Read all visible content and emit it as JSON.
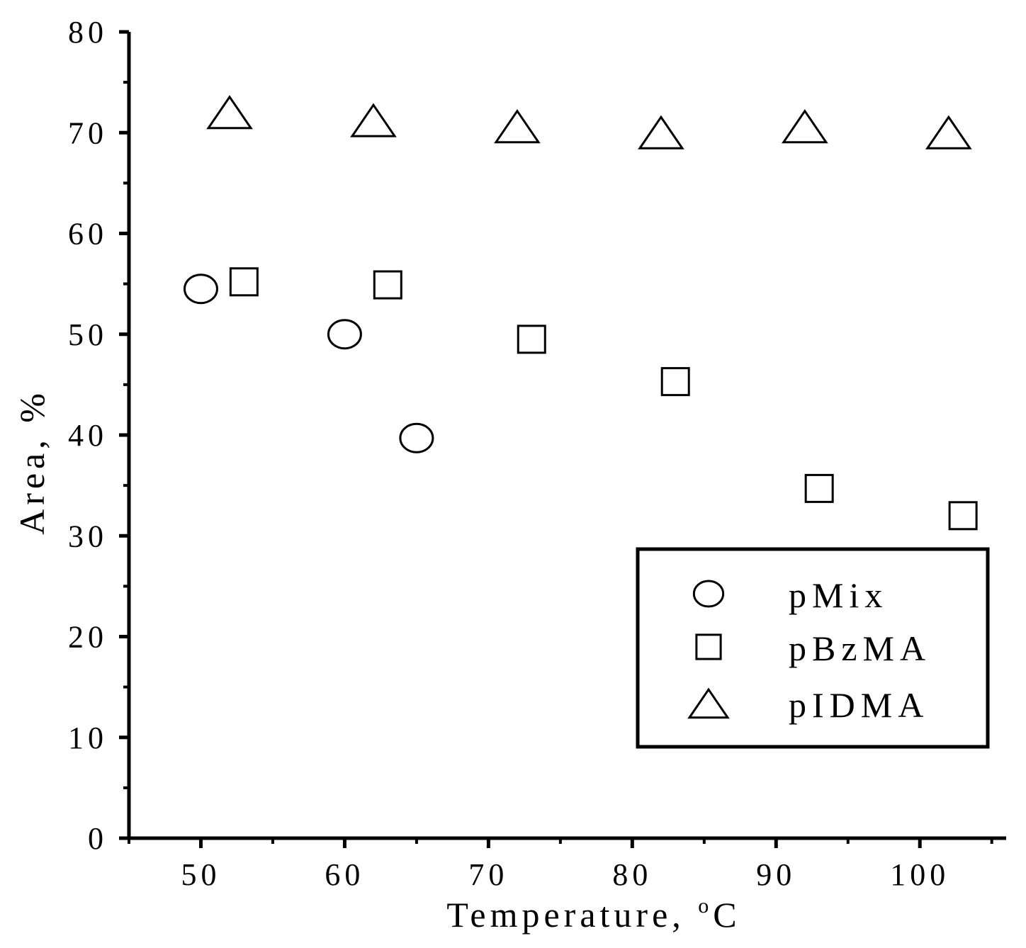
{
  "chart_data": {
    "type": "scatter",
    "xlabel": "Temperature, ",
    "xlabel_unit": "C",
    "xlabel_unit_prefix": "o",
    "ylabel": "Area, %",
    "xlim": [
      45,
      106
    ],
    "ylim": [
      0,
      80
    ],
    "x_ticks": [
      50,
      60,
      70,
      80,
      90,
      100
    ],
    "y_ticks": [
      0,
      10,
      20,
      30,
      40,
      50,
      60,
      70,
      80
    ],
    "grid": false,
    "legend_position": "bottom-right",
    "series": [
      {
        "name": "pMix",
        "marker": "circle",
        "x": [
          50,
          60,
          65
        ],
        "y": [
          54.5,
          50,
          39.7
        ]
      },
      {
        "name": "pBzMA",
        "marker": "square",
        "x": [
          53,
          63,
          73,
          83,
          93,
          103
        ],
        "y": [
          55.2,
          54.9,
          49.5,
          45.3,
          34.7,
          32
        ]
      },
      {
        "name": "pIDMA",
        "marker": "triangle",
        "x": [
          52,
          62,
          72,
          82,
          92,
          102
        ],
        "y": [
          72,
          71.2,
          70.6,
          70,
          70.6,
          70
        ]
      }
    ]
  }
}
